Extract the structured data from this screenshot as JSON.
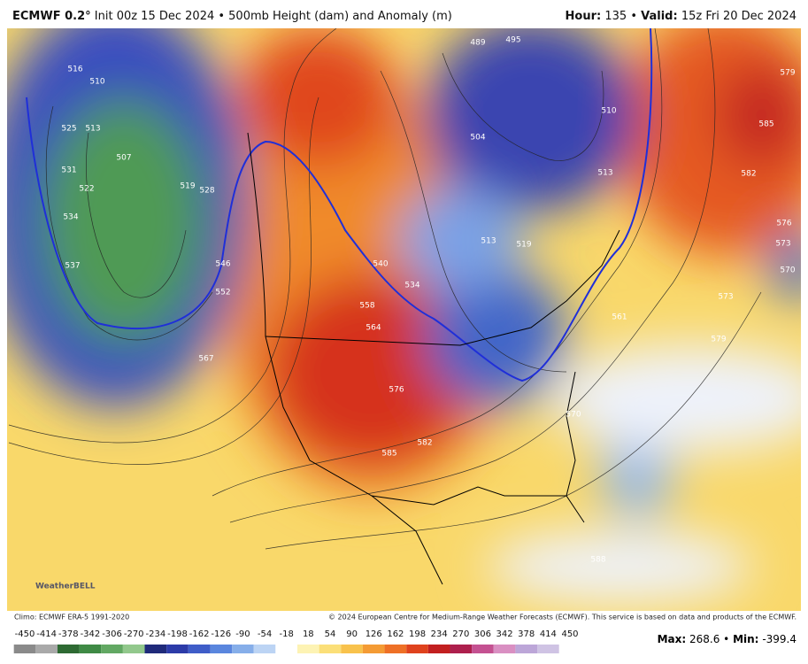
{
  "header": {
    "model": "ECMWF 0.2°",
    "init": " Init 00z 15 Dec 2024 • 500mb Height (dam) and Anomaly (m)",
    "hour_label": "Hour:",
    "hour": "135",
    "sep": " • ",
    "valid_label": "Valid:",
    "valid": "15z Fri 20 Dec 2024"
  },
  "footer": {
    "climo": "Climo: ECMWF ERA-5 1991-2020",
    "copyright": "© 2024 European Centre for Medium-Range Weather Forecasts (ECMWF). This service is based on data and products of the ECMWF.",
    "max_label": "Max:",
    "max": "268.6",
    "min_label": "Min:",
    "min": "-399.4",
    "logo": "WeatherBELL"
  },
  "colorbar": {
    "labels": [
      -450,
      -414,
      -378,
      -342,
      -306,
      -270,
      -234,
      -198,
      -162,
      -126,
      -90,
      -54,
      -18,
      18,
      54,
      90,
      126,
      162,
      198,
      234,
      270,
      306,
      342,
      378,
      414,
      450
    ],
    "colors": [
      "#8a8a8a",
      "#a9a9a9",
      "#2e6a33",
      "#3f8a45",
      "#62a863",
      "#92c88c",
      "#1f2a7a",
      "#2c3ba8",
      "#3f5dc8",
      "#5a86de",
      "#86aee9",
      "#bcd4f4",
      "#ffffff",
      "#fdf3b4",
      "#fbdf78",
      "#f8c24c",
      "#f49b34",
      "#ee7026",
      "#df421d",
      "#c21f20",
      "#ad1f4d",
      "#c45191",
      "#d98fc2",
      "#bca6d8",
      "#cfc3e4"
    ]
  },
  "contour_labels": [
    516,
    510,
    525,
    531,
    534,
    537,
    513,
    507,
    522,
    519,
    528,
    546,
    552,
    567,
    540,
    558,
    564,
    576,
    582,
    585,
    534,
    519,
    513,
    570,
    573,
    561,
    579,
    588,
    495,
    489,
    504,
    510,
    513,
    585,
    582,
    579,
    576,
    573,
    570
  ]
}
